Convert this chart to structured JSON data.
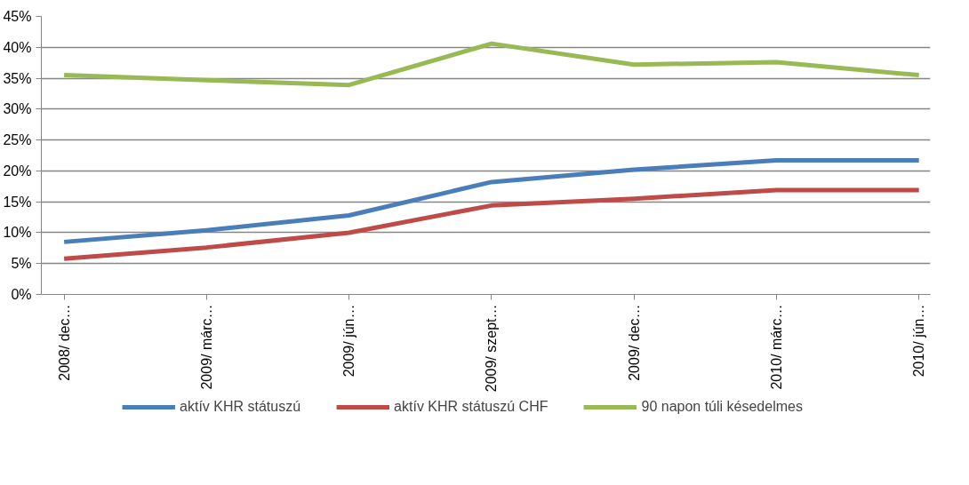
{
  "chart_data": {
    "type": "line",
    "categories": [
      "2008/ dec…",
      "2009/ márc…",
      "2009/ jún…",
      "2009/ szept…",
      "2009/ dec…",
      "2010/ márc…",
      "2010/ jún…"
    ],
    "series": [
      {
        "name": "aktív KHR státuszú",
        "color": "#4a7ebb",
        "values": [
          8.5,
          10.4,
          12.8,
          18.2,
          20.2,
          21.7,
          21.7
        ]
      },
      {
        "name": "aktív KHR státuszú CHF",
        "color": "#be4b48",
        "values": [
          5.8,
          7.6,
          10.0,
          14.4,
          15.5,
          16.9,
          16.9
        ]
      },
      {
        "name": "90 napon túli késedelmes",
        "color": "#98b954",
        "values": [
          35.5,
          34.7,
          33.9,
          40.6,
          37.2,
          37.6,
          35.5
        ]
      }
    ],
    "ylim": [
      0,
      45
    ],
    "yticks": [
      {
        "value": 0,
        "label": "0%"
      },
      {
        "value": 5,
        "label": "5%"
      },
      {
        "value": 10,
        "label": "10%"
      },
      {
        "value": 15,
        "label": "15%"
      },
      {
        "value": 20,
        "label": "20%"
      },
      {
        "value": 25,
        "label": "25%"
      },
      {
        "value": 30,
        "label": "30%"
      },
      {
        "value": 35,
        "label": "35%"
      },
      {
        "value": 40,
        "label": "40%"
      },
      {
        "value": 45,
        "label": "45%"
      }
    ],
    "grid": "y",
    "legend": "bottom",
    "line_style": "solid"
  }
}
